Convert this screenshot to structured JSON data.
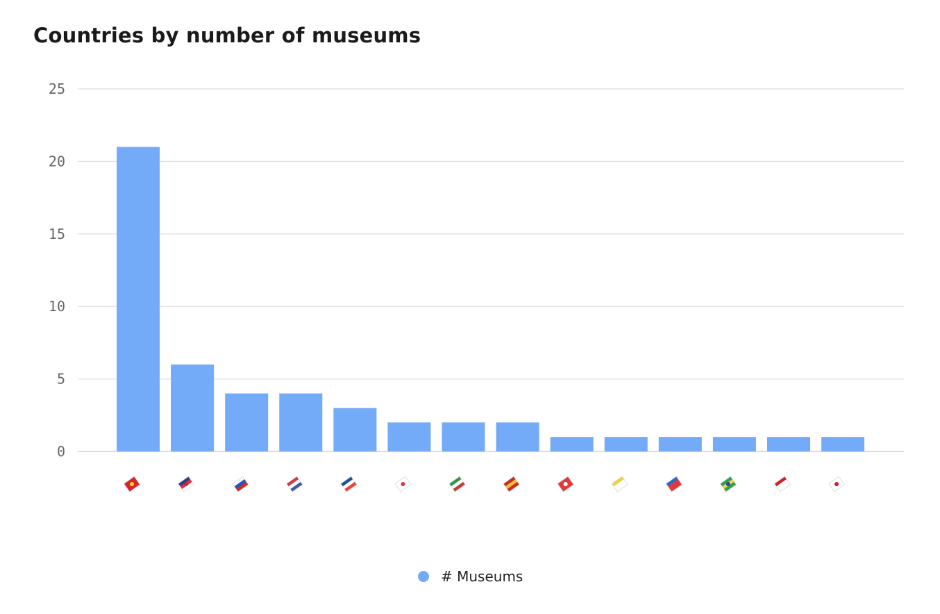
{
  "chart_data": {
    "type": "bar",
    "title": "Countries by number of museums",
    "categories": [
      "🇨🇳",
      "🇬🇧",
      "🇷🇺",
      "🇺🇸",
      "🇫🇷",
      "🇰🇷",
      "🇮🇹",
      "🇪🇸",
      "🇹🇷",
      "🇻🇦",
      "🇹🇼",
      "🇧🇷",
      "🇮🇩",
      "🇯🇵"
    ],
    "series": [
      {
        "name": "# Museums",
        "values": [
          21,
          6,
          4,
          4,
          3,
          2,
          2,
          2,
          1,
          1,
          1,
          1,
          1,
          1
        ],
        "color": "#74abf8"
      }
    ],
    "ylim": [
      0,
      25
    ],
    "yticks": [
      0,
      5,
      10,
      15,
      20,
      25
    ],
    "grid": true,
    "legend": "bottom",
    "xlabel": "",
    "ylabel": ""
  }
}
